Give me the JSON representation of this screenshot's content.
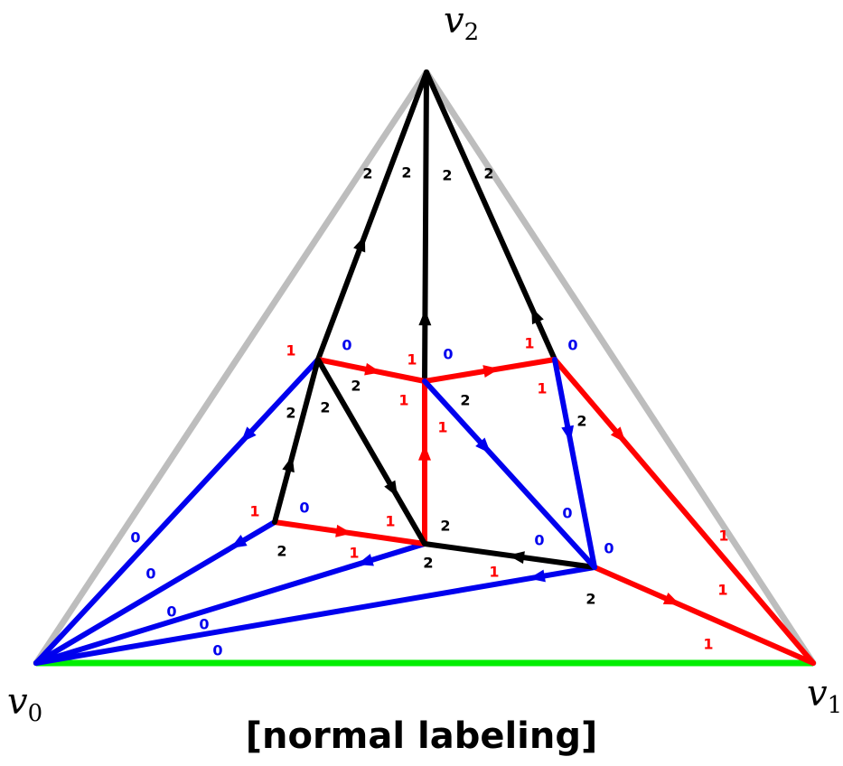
{
  "caption": "[normal labeling]",
  "colors": {
    "outer": "#bdbdbd",
    "base": "#00ee00",
    "c0": "#0000ee",
    "c1": "#ff0000",
    "c2": "#000000"
  },
  "vertex_labels": [
    {
      "name": "v0-label",
      "base": "v",
      "sub": "0"
    },
    {
      "name": "v1-label",
      "base": "v",
      "sub": "1"
    },
    {
      "name": "v2-label",
      "base": "v",
      "sub": "2"
    }
  ],
  "edges": [
    {
      "name": "edge-a-v2",
      "color": "c2",
      "arrow": true
    },
    {
      "name": "edge-e-v2",
      "color": "c2",
      "arrow": true
    },
    {
      "name": "edge-b-v2",
      "color": "c2",
      "arrow": true
    },
    {
      "name": "edge-a-v0",
      "color": "c0",
      "arrow": true
    },
    {
      "name": "edge-d-v0",
      "color": "c0",
      "arrow": true
    },
    {
      "name": "edge-c-v0",
      "color": "c0",
      "arrow": true
    },
    {
      "name": "edge-f-v0",
      "color": "c0",
      "arrow": true
    },
    {
      "name": "edge-b-v1",
      "color": "c1",
      "arrow": true
    },
    {
      "name": "edge-f-v1",
      "color": "c1",
      "arrow": true
    },
    {
      "name": "edge-a-e",
      "color": "c1",
      "arrow": true
    },
    {
      "name": "edge-e-b",
      "color": "c1",
      "arrow": true
    },
    {
      "name": "edge-d-c",
      "color": "c1",
      "arrow": true
    },
    {
      "name": "edge-c-e",
      "color": "c1",
      "arrow": true
    },
    {
      "name": "edge-d-a",
      "color": "c2",
      "arrow": true
    },
    {
      "name": "edge-a-c",
      "color": "c2",
      "arrow": true
    },
    {
      "name": "edge-f-c",
      "color": "c2",
      "arrow": true
    },
    {
      "name": "edge-e-f",
      "color": "c0",
      "arrow": true
    },
    {
      "name": "edge-b-f",
      "color": "c0",
      "arrow": true
    }
  ],
  "labels": [
    {
      "t": "2",
      "c": "c2"
    },
    {
      "t": "2",
      "c": "c2"
    },
    {
      "t": "2",
      "c": "c2"
    },
    {
      "t": "2",
      "c": "c2"
    },
    {
      "t": "1",
      "c": "c1"
    },
    {
      "t": "0",
      "c": "c0"
    },
    {
      "t": "1",
      "c": "c1"
    },
    {
      "t": "0",
      "c": "c0"
    },
    {
      "t": "1",
      "c": "c1"
    },
    {
      "t": "0",
      "c": "c0"
    },
    {
      "t": "2",
      "c": "c2"
    },
    {
      "t": "2",
      "c": "c2"
    },
    {
      "t": "2",
      "c": "c2"
    },
    {
      "t": "1",
      "c": "c1"
    },
    {
      "t": "2",
      "c": "c2"
    },
    {
      "t": "1",
      "c": "c1"
    },
    {
      "t": "1",
      "c": "c1"
    },
    {
      "t": "2",
      "c": "c2"
    },
    {
      "t": "1",
      "c": "c1"
    },
    {
      "t": "0",
      "c": "c0"
    },
    {
      "t": "1",
      "c": "c1"
    },
    {
      "t": "2",
      "c": "c2"
    },
    {
      "t": "0",
      "c": "c0"
    },
    {
      "t": "2",
      "c": "c2"
    },
    {
      "t": "1",
      "c": "c1"
    },
    {
      "t": "0",
      "c": "c0"
    },
    {
      "t": "0",
      "c": "c0"
    },
    {
      "t": "2",
      "c": "c2"
    },
    {
      "t": "0",
      "c": "c0"
    },
    {
      "t": "1",
      "c": "c1"
    },
    {
      "t": "1",
      "c": "c1"
    },
    {
      "t": "2",
      "c": "c2"
    },
    {
      "t": "0",
      "c": "c0"
    },
    {
      "t": "2",
      "c": "c2"
    },
    {
      "t": "1",
      "c": "c1"
    },
    {
      "t": "0",
      "c": "c0"
    },
    {
      "t": "0",
      "c": "c0"
    },
    {
      "t": "0",
      "c": "c0"
    },
    {
      "t": "1",
      "c": "c1"
    },
    {
      "t": "1",
      "c": "c1"
    }
  ]
}
